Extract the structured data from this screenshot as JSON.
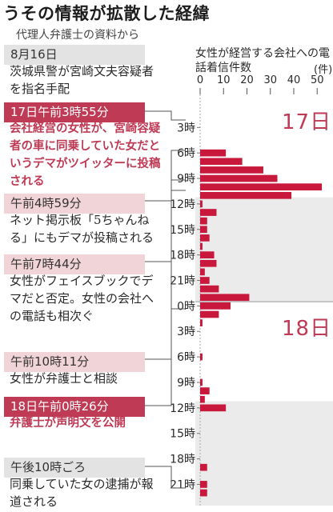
{
  "header": {
    "title": "うその情報が拡散した経緯",
    "subtitle": "代理人弁護士の資料から"
  },
  "timeline": [
    {
      "time": "8月16日",
      "text": "茨城県警が宮崎文夫容疑者を指名手配",
      "style": "gray"
    },
    {
      "time": "17日午前3時55分",
      "text": "会社経営の女性が、宮崎容疑者の車に同乗していた女だというデマがツイッターに投稿される",
      "style": "red"
    },
    {
      "time": "午前4時59分",
      "text": "ネット掲示板「5ちゃんねる」にもデマが投稿される",
      "style": "pink"
    },
    {
      "time": "午前7時44分",
      "text": "女性がフェイスブックでデマだと否定。女性の会社への電話も相次ぐ",
      "style": "pink"
    },
    {
      "time": "午前10時11分",
      "text": "女性が弁護士と相談",
      "style": "pink"
    },
    {
      "time": "18日午前0時26分",
      "text": "弁護士が声明文を公開",
      "style": "red"
    },
    {
      "time": "午後10時ごろ",
      "text": "同乗していた女の逮捕が報道される",
      "style": "gray"
    }
  ],
  "chart_data": {
    "type": "bar",
    "orientation": "horizontal",
    "title": "女性が経営する会社への電話着信件数",
    "unit": "(件)",
    "xlim": [
      0,
      53
    ],
    "xticks": [
      "0",
      "10",
      "20",
      "30",
      "40",
      "50"
    ],
    "day_labels": [
      "17日",
      "18日"
    ],
    "hour_tick_labels": [
      "3時",
      "6時",
      "9時",
      "12時",
      "15時",
      "18時",
      "21時",
      "0時",
      "3時",
      "6時",
      "9時",
      "12時",
      "15時",
      "18時",
      "21時"
    ],
    "categories": [
      "17日3時",
      "17日4時",
      "17日5時",
      "17日6時",
      "17日7時",
      "17日8時",
      "17日9時",
      "17日10時",
      "17日11時",
      "17日12時",
      "17日13時",
      "17日14時",
      "17日15時",
      "17日16時",
      "17日17時",
      "17日18時",
      "17日19時",
      "17日20時",
      "17日21時",
      "17日22時",
      "17日23時",
      "18日0時",
      "18日1時",
      "18日2時",
      "18日3時",
      "18日4時",
      "18日5時",
      "18日6時",
      "18日7時",
      "18日8時",
      "18日9時",
      "18日10時",
      "18日11時",
      "18日12時",
      "18日13時",
      "18日14時",
      "18日15時",
      "18日16時",
      "18日17時",
      "18日18時",
      "18日19時",
      "18日20時",
      "18日21時",
      "18日22時",
      "18日23時"
    ],
    "values": [
      0,
      0,
      0,
      11,
      18,
      27,
      33,
      52,
      39,
      1,
      7,
      3,
      3,
      4,
      1,
      6,
      7,
      2,
      4,
      8,
      21,
      13,
      8,
      1,
      0,
      0,
      0,
      1,
      0,
      0,
      1,
      4,
      2,
      11,
      0,
      0,
      0,
      0,
      0,
      0,
      3,
      0,
      3,
      3,
      0
    ],
    "colors": {
      "bar": "#c8193c",
      "highlight_line": "#d05a70",
      "stripe": "#ebebeb",
      "axis": "#aaaaaa"
    }
  }
}
